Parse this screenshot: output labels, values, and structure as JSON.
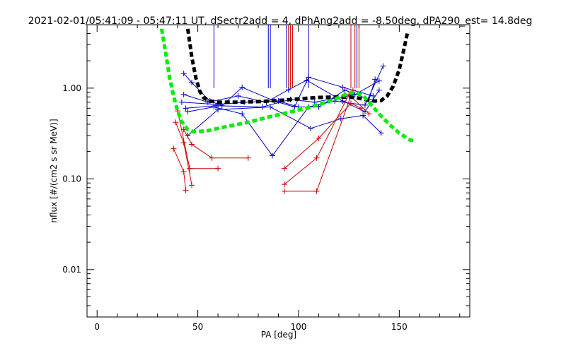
{
  "chart_data": {
    "type": "scatter",
    "title": "2021-02-01/05:41:09 - 05:47:11 UT, dSectr2add = 4, dPhAng2add = -8.50deg, dPA290_est=  14.8deg",
    "xlabel": "PA [deg]",
    "ylabel": "nflux [#/(cm2 s sr MeV)]",
    "xlim": [
      -5,
      185
    ],
    "ylim": [
      0.003,
      5
    ],
    "yscale": "log",
    "grid": false,
    "x_ticks": [
      {
        "value": 0,
        "label": "0"
      },
      {
        "value": 50,
        "label": "50"
      },
      {
        "value": 100,
        "label": "100"
      },
      {
        "value": 150,
        "label": "150"
      }
    ],
    "y_ticks": [
      {
        "value": 0.01,
        "label": "0.01"
      },
      {
        "value": 0.1,
        "label": "0.10"
      },
      {
        "value": 1,
        "label": "1.00"
      }
    ],
    "colors": {
      "blue": "#0000cc",
      "red": "#cc0000",
      "black": "#000000",
      "green": "#00ee00"
    },
    "series": [
      {
        "color": "blue",
        "style": "line+plus",
        "lines": [
          [
            [
              43,
              1.45
            ],
            [
              47,
              1.15
            ],
            [
              56,
              0.72
            ],
            [
              62,
              0.64
            ],
            [
              72,
              1.02
            ],
            [
              88,
              0.72
            ],
            [
              98,
              0.62
            ],
            [
              105,
              1.32
            ],
            [
              122,
              1.02
            ],
            [
              137,
              0.82
            ]
          ],
          [
            [
              43,
              0.85
            ],
            [
              55,
              0.7
            ],
            [
              70,
              0.82
            ],
            [
              84,
              0.7
            ],
            [
              95,
              0.96
            ],
            [
              104,
              1.22
            ],
            [
              122,
              0.72
            ],
            [
              133,
              0.55
            ],
            [
              140,
              0.95
            ]
          ],
          [
            [
              42,
              0.7
            ],
            [
              60,
              0.66
            ],
            [
              73,
              0.7
            ],
            [
              90,
              0.72
            ],
            [
              100,
              0.62
            ],
            [
              110,
              0.62
            ],
            [
              123,
              0.95
            ],
            [
              135,
              0.75
            ],
            [
              138,
              1.25
            ]
          ],
          [
            [
              44,
              0.6
            ],
            [
              59,
              0.64
            ],
            [
              82,
              0.62
            ],
            [
              96,
              0.75
            ],
            [
              108,
              0.7
            ],
            [
              128,
              0.85
            ],
            [
              140,
              1.2
            ]
          ],
          [
            [
              45,
              0.55
            ],
            [
              58,
              0.62
            ],
            [
              72,
              0.52
            ],
            [
              87,
              0.18
            ],
            [
              105,
              0.62
            ],
            [
              118,
              0.72
            ],
            [
              133,
              0.65
            ],
            [
              142,
              1.75
            ]
          ],
          [
            [
              45,
              0.3
            ],
            [
              60,
              0.58
            ],
            [
              86,
              0.62
            ],
            [
              106,
              0.36
            ],
            [
              121,
              0.46
            ],
            [
              132,
              0.5
            ],
            [
              141,
              0.32
            ]
          ]
        ]
      },
      {
        "color": "red",
        "style": "line+plus",
        "lines": [
          [
            [
              38,
              0.215
            ],
            [
              43,
              0.12
            ],
            [
              44,
              0.075
            ]
          ],
          [
            [
              39,
              0.42
            ],
            [
              43,
              0.25
            ],
            [
              47,
              0.085
            ]
          ],
          [
            [
              40,
              0.56
            ],
            [
              46,
              0.13
            ],
            [
              60,
              0.13
            ]
          ],
          [
            [
              43,
              0.35
            ],
            [
              47,
              0.24
            ],
            [
              57,
              0.17
            ],
            [
              75,
              0.17
            ]
          ],
          [
            [
              93,
              0.13
            ],
            [
              110,
              0.28
            ],
            [
              126,
              0.68
            ],
            [
              131,
              0.6
            ]
          ],
          [
            [
              93,
              0.087
            ],
            [
              109,
              0.17
            ],
            [
              125,
              0.85
            ],
            [
              135,
              0.52
            ]
          ],
          [
            [
              93,
              0.073
            ],
            [
              109,
              0.073
            ],
            [
              127,
              0.95
            ]
          ]
        ]
      }
    ],
    "fit_curves": [
      {
        "color": "black",
        "style": "thick-dashed",
        "points": [
          [
            45,
            4.5
          ],
          [
            47,
            2.2
          ],
          [
            49,
            1.3
          ],
          [
            51,
            0.92
          ],
          [
            53,
            0.78
          ],
          [
            56,
            0.72
          ],
          [
            60,
            0.7
          ],
          [
            70,
            0.7
          ],
          [
            80,
            0.71
          ],
          [
            90,
            0.73
          ],
          [
            100,
            0.76
          ],
          [
            110,
            0.79
          ],
          [
            120,
            0.8
          ],
          [
            128,
            0.79
          ],
          [
            134,
            0.74
          ],
          [
            138,
            0.72
          ],
          [
            141,
            0.73
          ],
          [
            144,
            0.82
          ],
          [
            147,
            1.05
          ],
          [
            150,
            1.6
          ],
          [
            152,
            2.5
          ],
          [
            154,
            4.0
          ]
        ]
      },
      {
        "color": "green",
        "style": "thick-dashed",
        "points": [
          [
            32,
            4.5
          ],
          [
            34,
            2.5
          ],
          [
            36,
            1.3
          ],
          [
            38,
            0.82
          ],
          [
            40,
            0.56
          ],
          [
            42,
            0.43
          ],
          [
            45,
            0.35
          ],
          [
            48,
            0.33
          ],
          [
            55,
            0.34
          ],
          [
            65,
            0.38
          ],
          [
            75,
            0.42
          ],
          [
            85,
            0.48
          ],
          [
            95,
            0.54
          ],
          [
            105,
            0.61
          ],
          [
            115,
            0.71
          ],
          [
            120,
            0.79
          ],
          [
            125,
            0.88
          ],
          [
            128,
            0.9
          ],
          [
            132,
            0.83
          ],
          [
            136,
            0.66
          ],
          [
            140,
            0.52
          ],
          [
            145,
            0.4
          ],
          [
            150,
            0.32
          ],
          [
            155,
            0.27
          ],
          [
            158,
            0.26
          ]
        ]
      }
    ],
    "vertical_markers": [
      {
        "x": 58,
        "color": "blue"
      },
      {
        "x": 85,
        "color": "blue"
      },
      {
        "x": 86,
        "color": "blue"
      },
      {
        "x": 94,
        "color": "blue"
      },
      {
        "x": 95,
        "color": "red"
      },
      {
        "x": 96,
        "color": "red"
      },
      {
        "x": 97,
        "color": "red"
      },
      {
        "x": 105,
        "color": "blue"
      },
      {
        "x": 126,
        "color": "red"
      },
      {
        "x": 128,
        "color": "red"
      },
      {
        "x": 129,
        "color": "blue"
      },
      {
        "x": 130,
        "color": "red"
      }
    ]
  }
}
